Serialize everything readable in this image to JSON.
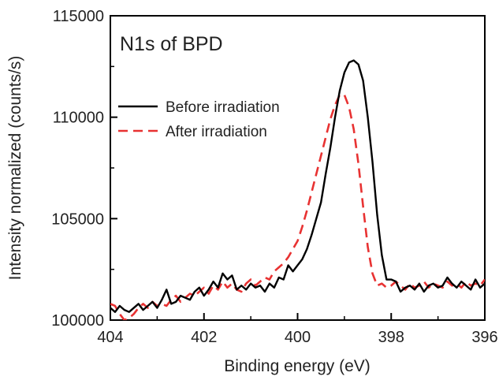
{
  "chart_data": {
    "type": "line",
    "title": "N1s of BPD",
    "xlabel": "Binding energy (eV)",
    "ylabel": "Intensity normalized (counts/s)",
    "xlim": [
      404,
      396
    ],
    "ylim": [
      100000,
      115000
    ],
    "x_reversed": true,
    "x_ticks": [
      404,
      402,
      400,
      398,
      396
    ],
    "y_ticks": [
      100000,
      105000,
      110000,
      115000
    ],
    "grid": false,
    "legend_position": "top-left",
    "series": [
      {
        "name": "Before irradiation",
        "color": "#000000",
        "dash": "solid",
        "x": [
          404.0,
          403.9,
          403.8,
          403.7,
          403.6,
          403.5,
          403.4,
          403.3,
          403.2,
          403.1,
          403.0,
          402.9,
          402.8,
          402.7,
          402.6,
          402.5,
          402.4,
          402.3,
          402.2,
          402.1,
          402.0,
          401.9,
          401.8,
          401.7,
          401.6,
          401.5,
          401.4,
          401.3,
          401.2,
          401.1,
          401.0,
          400.9,
          400.8,
          400.7,
          400.6,
          400.5,
          400.4,
          400.3,
          400.2,
          400.1,
          400.0,
          399.9,
          399.8,
          399.7,
          399.6,
          399.5,
          399.4,
          399.3,
          399.2,
          399.1,
          399.0,
          398.9,
          398.8,
          398.7,
          398.6,
          398.5,
          398.4,
          398.3,
          398.2,
          398.1,
          398.0,
          397.9,
          397.8,
          397.7,
          397.6,
          397.5,
          397.4,
          397.3,
          397.2,
          397.1,
          397.0,
          396.9,
          396.8,
          396.7,
          396.6,
          396.5,
          396.4,
          396.3,
          396.2,
          396.1,
          396.0
        ],
        "values": [
          100600,
          100400,
          100700,
          100500,
          100400,
          100600,
          100800,
          100500,
          100700,
          100900,
          100600,
          101000,
          101500,
          100800,
          100900,
          101200,
          101100,
          101000,
          101400,
          101600,
          101200,
          101500,
          101900,
          101600,
          102300,
          102000,
          102200,
          101500,
          101700,
          101500,
          101800,
          101600,
          101700,
          101400,
          101800,
          101600,
          102100,
          102000,
          102700,
          102400,
          102700,
          103000,
          103500,
          104200,
          105000,
          105800,
          107200,
          108500,
          110000,
          111300,
          112200,
          112700,
          112800,
          112600,
          111800,
          110000,
          107800,
          105200,
          103200,
          102000,
          102000,
          101900,
          101400,
          101600,
          101700,
          101500,
          101800,
          101400,
          101700,
          101800,
          101600,
          101700,
          102100,
          101800,
          101600,
          101900,
          101700,
          101500,
          102000,
          101600,
          101800
        ]
      },
      {
        "name": "After irradiation",
        "color": "#e83232",
        "dash": "dashed",
        "x": [
          404.0,
          403.9,
          403.8,
          403.7,
          403.6,
          403.5,
          403.4,
          403.3,
          403.2,
          403.1,
          403.0,
          402.9,
          402.8,
          402.7,
          402.6,
          402.5,
          402.4,
          402.3,
          402.2,
          402.1,
          402.0,
          401.9,
          401.8,
          401.7,
          401.6,
          401.5,
          401.4,
          401.3,
          401.2,
          401.1,
          401.0,
          400.9,
          400.8,
          400.7,
          400.6,
          400.5,
          400.4,
          400.3,
          400.2,
          400.1,
          400.0,
          399.9,
          399.8,
          399.7,
          399.6,
          399.5,
          399.4,
          399.3,
          399.2,
          399.1,
          399.0,
          398.9,
          398.8,
          398.7,
          398.6,
          398.5,
          398.4,
          398.3,
          398.2,
          398.1,
          398.0,
          397.9,
          397.8,
          397.7,
          397.6,
          397.5,
          397.4,
          397.3,
          397.2,
          397.1,
          397.0,
          396.9,
          396.8,
          396.7,
          396.6,
          396.5,
          396.4,
          396.3,
          396.2,
          396.1,
          396.0
        ],
        "values": [
          100800,
          100700,
          100300,
          100000,
          100100,
          100300,
          100600,
          100800,
          100600,
          100900,
          100700,
          100800,
          100700,
          101000,
          101200,
          100900,
          101100,
          101300,
          101200,
          101400,
          101600,
          101300,
          101700,
          101500,
          101900,
          101600,
          101800,
          101500,
          101400,
          101800,
          102000,
          101700,
          101900,
          102100,
          102000,
          102400,
          102600,
          102800,
          103100,
          103500,
          103900,
          104600,
          105400,
          106300,
          107200,
          108100,
          109000,
          109900,
          110600,
          111100,
          111100,
          110500,
          109400,
          107700,
          105600,
          103600,
          102300,
          101700,
          101800,
          101600,
          101700,
          101900,
          101700,
          101500,
          101800,
          101600,
          101700,
          101900,
          101600,
          101800,
          101700,
          101600,
          101900,
          101700,
          101800,
          101600,
          101900,
          101700,
          101800,
          101700,
          102000
        ]
      }
    ]
  }
}
